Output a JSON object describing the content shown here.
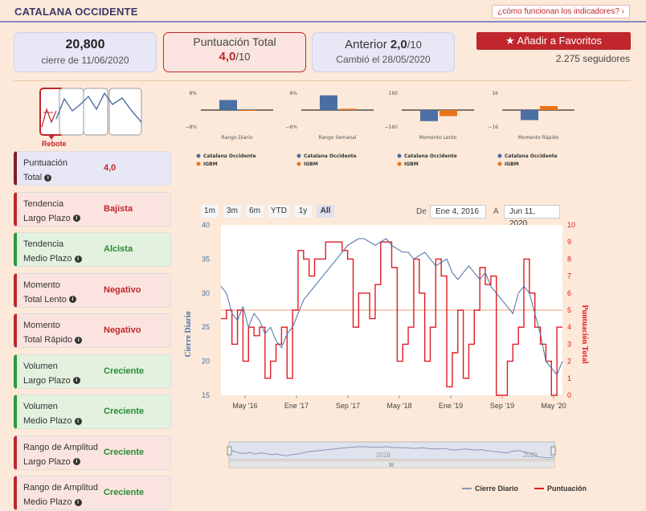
{
  "header": {
    "title": "CATALANA OCCIDENTE",
    "how_link": "¿cómo funcionan los indicadores? ›"
  },
  "cards": {
    "close_value": "20,800",
    "close_sub": "cierre de 11/06/2020",
    "score_label": "Puntuación Total",
    "score_value": "4,0",
    "score_suffix": "/10",
    "prev_label": "Anterior",
    "prev_value": "2,0",
    "prev_suffix": "/10",
    "prev_sub": "Cambió el 28/05/2020"
  },
  "favorites": {
    "label": "★ Añadir a Favoritos",
    "followers": "2.275 seguidores"
  },
  "rebote_label": "Rebote",
  "indicators": [
    {
      "l1": "Puntuación",
      "l2": "Total",
      "value": "4,0",
      "color": "red",
      "bg": "purple"
    },
    {
      "l1": "Tendencia",
      "l2": "Largo Plazo",
      "value": "Bajista",
      "color": "red",
      "bg": "red"
    },
    {
      "l1": "Tendencia",
      "l2": "Medio Plazo",
      "value": "Alcista",
      "color": "green",
      "bg": "green"
    },
    {
      "l1": "Momento",
      "l2": "Total Lento",
      "value": "Negativo",
      "color": "red",
      "bg": "red"
    },
    {
      "l1": "Momento",
      "l2": "Total Rápido",
      "value": "Negativo",
      "color": "red",
      "bg": "red"
    },
    {
      "l1": "Volumen",
      "l2": "Largo Plazo",
      "value": "Creciente",
      "color": "green",
      "bg": "green"
    },
    {
      "l1": "Volumen",
      "l2": "Medio Plazo",
      "value": "Creciente",
      "color": "green",
      "bg": "green"
    },
    {
      "l1": "Rango de Amplitud",
      "l2": "Largo Plazo",
      "value": "Creciente",
      "color": "green",
      "bg": "red"
    },
    {
      "l1": "Rango de Amplitud",
      "l2": "Medio Plazo",
      "value": "Creciente",
      "color": "green",
      "bg": "red"
    }
  ],
  "mini_charts": [
    {
      "title": "Rango Diario",
      "top": "8%",
      "bottom": "−8%",
      "blue": 5,
      "orange": -0.3,
      "max": 8
    },
    {
      "title": "Rango Semanal",
      "top": "6%",
      "bottom": "−6%",
      "blue": 5.5,
      "orange": 0.5,
      "max": 6
    },
    {
      "title": "Momento Lento",
      "top": "160",
      "bottom": "−160",
      "blue": -110,
      "orange": -60,
      "max": 160
    },
    {
      "title": "Momento Rápido",
      "top": "16",
      "bottom": "−16",
      "blue": -10,
      "orange": 4,
      "max": 16
    }
  ],
  "mini_legend": {
    "a": "Catalana Occidente",
    "b": "IGBM"
  },
  "range_buttons": [
    "1m",
    "3m",
    "6m",
    "YTD",
    "1y",
    "All"
  ],
  "date_from_label": "De",
  "date_from": "Ene 4, 2016",
  "date_to_label": "A",
  "date_to": "Jun 11, 2020",
  "colors": {
    "price": "#4a6fa5",
    "score": "#e01b24",
    "accent": "#c0262c"
  },
  "chart_data": {
    "type": "line",
    "ylabel": "Cierre Diario",
    "y2label": "Puntuación Total",
    "ylim": [
      15,
      40
    ],
    "y2lim": [
      0,
      10
    ],
    "yticks": [
      15,
      20,
      25,
      30,
      35,
      40
    ],
    "y2ticks": [
      0,
      1,
      2,
      3,
      4,
      5,
      6,
      7,
      8,
      9,
      10
    ],
    "xticks": [
      "May '16",
      "Ene '17",
      "Sep '17",
      "May '18",
      "Ene '19",
      "Sep '19",
      "May '20"
    ],
    "navigator_labels": [
      "2018",
      "2020"
    ],
    "legend": [
      "Cierre Diario",
      "Puntuación"
    ],
    "series": [
      {
        "name": "Cierre Diario",
        "values": [
          31,
          30,
          27,
          26,
          28,
          25,
          27,
          26,
          24,
          25,
          23,
          22,
          24,
          25,
          27,
          29,
          30,
          31,
          32,
          33,
          34,
          35,
          36,
          37,
          37.5,
          38,
          38,
          37.5,
          37,
          37.5,
          38,
          37,
          36.5,
          36,
          36,
          35,
          35.5,
          36,
          35,
          34,
          34.5,
          35,
          33,
          32,
          33,
          34,
          33,
          32,
          33,
          31,
          30,
          29,
          28,
          27,
          30,
          31,
          30,
          27,
          24,
          20,
          19,
          18,
          20
        ]
      },
      {
        "name": "Puntuación",
        "values": [
          4.5,
          5,
          3,
          5,
          2,
          4,
          3.5,
          4,
          1,
          2,
          3,
          4,
          1,
          5,
          8.5,
          8,
          7,
          8,
          8,
          9,
          9,
          9,
          8.5,
          8,
          4,
          6,
          6,
          4.5,
          6.5,
          9,
          9,
          7.5,
          2,
          3,
          4,
          8,
          6,
          2,
          4,
          8,
          7,
          0.5,
          2.5,
          5,
          1,
          3,
          5,
          7.5,
          6.5,
          7,
          0,
          0,
          2,
          3,
          4,
          8,
          6,
          4,
          3,
          2,
          0,
          4,
          4
        ]
      }
    ]
  }
}
